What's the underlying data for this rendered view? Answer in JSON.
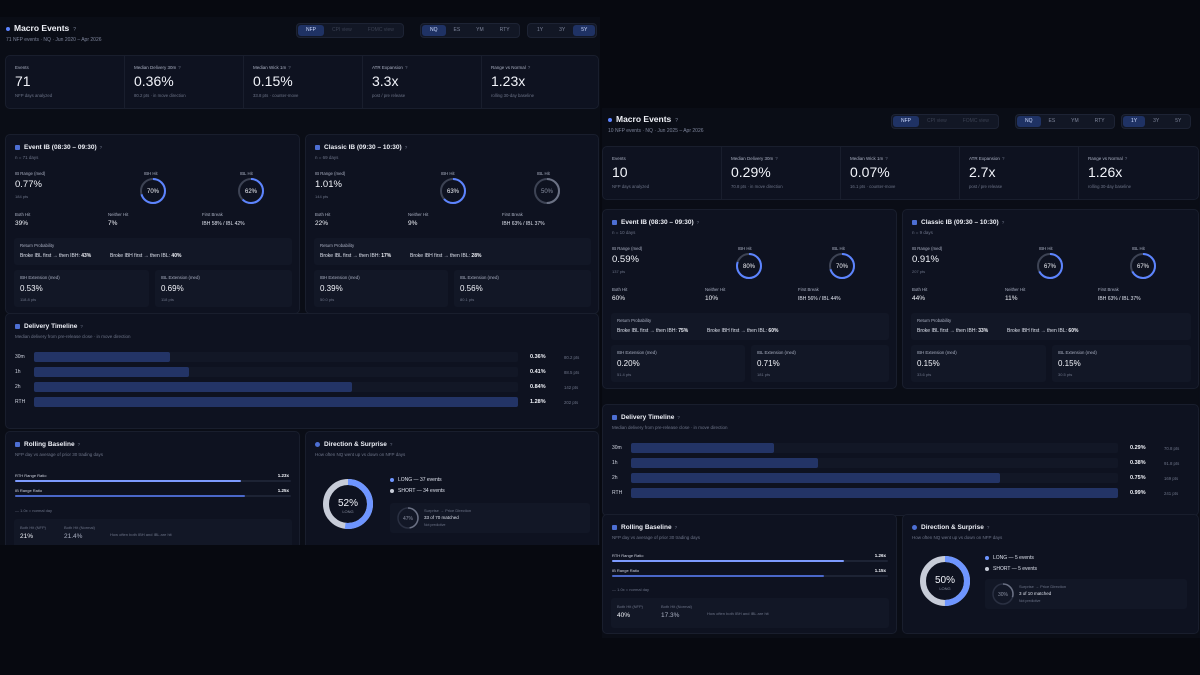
{
  "colors": {
    "accent": "#5c84ff",
    "ring_dim": "#3d4354",
    "long": "#6e95ff",
    "short": "#c7ccd8"
  },
  "dashboards": [
    {
      "header": {
        "title": "Macro Events",
        "subtitle": "71 NFP events · NQ · Jun 2020 – Apr 2026",
        "events": [
          "NFP",
          "CPI view",
          "FOMC view"
        ],
        "symbols": [
          "NQ",
          "ES",
          "YM",
          "RTY"
        ],
        "ranges": [
          "1Y",
          "3Y",
          "5Y"
        ],
        "active_event": "NFP",
        "active_symbol": "NQ",
        "active_range": "5Y"
      },
      "stats": [
        {
          "label": "Events",
          "value": "71",
          "desc": "NFP days analyzed",
          "help": ""
        },
        {
          "label": "Median Delivery 30m",
          "value": "0.36%",
          "desc": "80.2 pts · in move direction",
          "help": "?"
        },
        {
          "label": "Median Wick 1m",
          "value": "0.15%",
          "desc": "33.8 pts · counter-move",
          "help": "?"
        },
        {
          "label": "ATR Expansion",
          "value": "3.3x",
          "desc": "post / pre release",
          "help": "?"
        },
        {
          "label": "Range vs Normal",
          "value": "1.23x",
          "desc": "rolling 30-day baseline",
          "help": "?"
        }
      ],
      "event_ib": {
        "title": "Event IB (08:30 – 09:30)",
        "n": "n = 71 days",
        "range_label": "IB Range (med)",
        "range_value": "0.77%",
        "range_pts": "184 pts",
        "ibh_label": "IBH Hit",
        "ibh_pct": 70,
        "ibh_text": "70%",
        "ibl_label": "IBL Hit",
        "ibl_pct": 62,
        "ibl_text": "62%",
        "both_label": "Both Hit",
        "both_value": "39%",
        "neither_label": "Neither Hit",
        "neither_value": "7%",
        "first_label": "First Break",
        "first_value": "IBH 58% / IBL 42%",
        "rp_label": "Return Probability",
        "rp_a_text": "Broke IBL first → then IBH:",
        "rp_a_val": "43%",
        "rp_b_text": "Broke IBH first → then IBL:",
        "rp_b_val": "40%",
        "ibh_ext_label": "IBH Extension (med)",
        "ibh_ext_value": "0.53%",
        "ibh_ext_pts": "118.8 pts",
        "ibl_ext_label": "IBL Extension (med)",
        "ibl_ext_value": "0.69%",
        "ibl_ext_pts": "118 pts"
      },
      "classic_ib": {
        "title": "Classic IB (09:30 – 10:30)",
        "n": "n = 69 days",
        "range_label": "IB Range (med)",
        "range_value": "1.01%",
        "range_pts": "144 pts",
        "ibh_label": "IBH Hit",
        "ibh_pct": 63,
        "ibh_text": "63%",
        "ibl_label": "IBL Hit",
        "ibl_pct": 50,
        "ibl_text": "50%",
        "both_label": "Both Hit",
        "both_value": "22%",
        "neither_label": "Neither Hit",
        "neither_value": "9%",
        "first_label": "First Break",
        "first_value": "IBH 63% / IBL 37%",
        "rp_label": "Return Probability",
        "rp_a_text": "Broke IBL first → then IBH:",
        "rp_a_val": "17%",
        "rp_b_text": "Broke IBH first → then IBL:",
        "rp_b_val": "28%",
        "ibh_ext_label": "IBH Extension (med)",
        "ibh_ext_value": "0.39%",
        "ibh_ext_pts": "50.0 pts",
        "ibl_ext_label": "IBL Extension (med)",
        "ibl_ext_value": "0.56%",
        "ibl_ext_pts": "80.1 pts"
      },
      "timeline": {
        "title": "Delivery Timeline",
        "subtitle": "Median delivery from pre-release close · in move direction",
        "rows": [
          {
            "label": "30m",
            "pct": 0.36,
            "value": "0.36%",
            "pts": "80.2 pts"
          },
          {
            "label": "1h",
            "pct": 0.41,
            "value": "0.41%",
            "pts": "88.5 pts"
          },
          {
            "label": "2h",
            "pct": 0.84,
            "value": "0.84%",
            "pts": "142 pts"
          },
          {
            "label": "RTH",
            "pct": 1.28,
            "value": "1.28%",
            "pts": "202 pts"
          }
        ]
      },
      "baseline": {
        "title": "Rolling Baseline",
        "subtitle": "NFP day vs average of prior 30 trading days",
        "rth_label": "RTH Range Ratio",
        "rth_value": "1.23x",
        "rth_ratio": 1.23,
        "ib_label": "IB Range Ratio",
        "ib_value": "1.25x",
        "ib_ratio": 1.25,
        "note": "— 1.0x = normal day",
        "nfp_label": "Both Hit (NFP)",
        "nfp_value": "21%",
        "normal_label": "Both Hit (Normal)",
        "normal_value": "21.4%",
        "compare_text": "How often both IBH and IBL are hit"
      },
      "direction": {
        "title": "Direction & Surprise",
        "subtitle": "How often NQ went up vs down on NFP days",
        "long_pct": 52,
        "donut_value": "52%",
        "donut_label": "LONG",
        "long_text": "LONG — 37 events",
        "short_text": "SHORT — 34 events",
        "surprise_label": "Surprise → Price Direction",
        "surprise_pct": 47,
        "surprise_value": "47%",
        "surprise_detail": "33 of 70 matched",
        "surprise_note": "Not predictive"
      }
    },
    {
      "header": {
        "title": "Macro Events",
        "subtitle": "10 NFP events · NQ · Jun 2025 – Apr 2026",
        "events": [
          "NFP",
          "CPI view",
          "FOMC view"
        ],
        "symbols": [
          "NQ",
          "ES",
          "YM",
          "RTY"
        ],
        "ranges": [
          "1Y",
          "3Y",
          "5Y"
        ],
        "active_event": "NFP",
        "active_symbol": "NQ",
        "active_range": "1Y"
      },
      "stats": [
        {
          "label": "Events",
          "value": "10",
          "desc": "NFP days analyzed",
          "help": ""
        },
        {
          "label": "Median Delivery 30m",
          "value": "0.29%",
          "desc": "70.8 pts · in move direction",
          "help": "?"
        },
        {
          "label": "Median Wick 1m",
          "value": "0.07%",
          "desc": "16.1 pts · counter-move",
          "help": "?"
        },
        {
          "label": "ATR Expansion",
          "value": "2.7x",
          "desc": "post / pre release",
          "help": "?"
        },
        {
          "label": "Range vs Normal",
          "value": "1.26x",
          "desc": "rolling 30-day baseline",
          "help": "?"
        }
      ],
      "event_ib": {
        "title": "Event IB (08:30 – 09:30)",
        "n": "n = 10 days",
        "range_label": "IB Range (med)",
        "range_value": "0.59%",
        "range_pts": "137 pts",
        "ibh_label": "IBH Hit",
        "ibh_pct": 80,
        "ibh_text": "80%",
        "ibl_label": "IBL Hit",
        "ibl_pct": 70,
        "ibl_text": "70%",
        "both_label": "Both Hit",
        "both_value": "60%",
        "neither_label": "Neither Hit",
        "neither_value": "10%",
        "first_label": "First Break",
        "first_value": "IBH 56% / IBL 44%",
        "rp_label": "Return Probability",
        "rp_a_text": "Broke IBL first → then IBH:",
        "rp_a_val": "75%",
        "rp_b_text": "Broke IBH first → then IBL:",
        "rp_b_val": "60%",
        "ibh_ext_label": "IBH Extension (med)",
        "ibh_ext_value": "0.20%",
        "ibh_ext_pts": "51.4 pts",
        "ibl_ext_label": "IBL Extension (med)",
        "ibl_ext_value": "0.71%",
        "ibl_ext_pts": "181 pts"
      },
      "classic_ib": {
        "title": "Classic IB (09:30 – 10:30)",
        "n": "n = 9 days",
        "range_label": "IB Range (med)",
        "range_value": "0.91%",
        "range_pts": "207 pts",
        "ibh_label": "IBH Hit",
        "ibh_pct": 67,
        "ibh_text": "67%",
        "ibl_label": "IBL Hit",
        "ibl_pct": 67,
        "ibl_text": "67%",
        "both_label": "Both Hit",
        "both_value": "44%",
        "neither_label": "Neither Hit",
        "neither_value": "11%",
        "first_label": "First Break",
        "first_value": "IBH 63% / IBL 37%",
        "rp_label": "Return Probability",
        "rp_a_text": "Broke IBL first → then IBH:",
        "rp_a_val": "33%",
        "rp_b_text": "Broke IBH first → then IBL:",
        "rp_b_val": "60%",
        "ibh_ext_label": "IBH Extension (med)",
        "ibh_ext_value": "0.15%",
        "ibh_ext_pts": "33.6 pts",
        "ibl_ext_label": "IBL Extension (med)",
        "ibl_ext_value": "0.15%",
        "ibl_ext_pts": "30.5 pts"
      },
      "timeline": {
        "title": "Delivery Timeline",
        "subtitle": "Median delivery from pre-release close · in move direction",
        "rows": [
          {
            "label": "30m",
            "pct": 0.29,
            "value": "0.29%",
            "pts": "70.8 pts"
          },
          {
            "label": "1h",
            "pct": 0.38,
            "value": "0.38%",
            "pts": "91.8 pts"
          },
          {
            "label": "2h",
            "pct": 0.75,
            "value": "0.75%",
            "pts": "169 pts"
          },
          {
            "label": "RTH",
            "pct": 0.99,
            "value": "0.99%",
            "pts": "241 pts"
          }
        ]
      },
      "baseline": {
        "title": "Rolling Baseline",
        "subtitle": "NFP day vs average of prior 30 trading days",
        "rth_label": "RTH Range Ratio",
        "rth_value": "1.26x",
        "rth_ratio": 1.26,
        "ib_label": "IB Range Ratio",
        "ib_value": "1.15x",
        "ib_ratio": 1.15,
        "note": "— 1.0x = normal day",
        "nfp_label": "Both Hit (NFP)",
        "nfp_value": "40%",
        "normal_label": "Both Hit (Normal)",
        "normal_value": "17.3%",
        "compare_text": "How often both IBH and IBL are hit"
      },
      "direction": {
        "title": "Direction & Surprise",
        "subtitle": "How often NQ went up vs down on NFP days",
        "long_pct": 50,
        "donut_value": "50%",
        "donut_label": "LONG",
        "long_text": "LONG — 5 events",
        "short_text": "SHORT — 5 events",
        "surprise_label": "Surprise → Price Direction",
        "surprise_pct": 30,
        "surprise_value": "30%",
        "surprise_detail": "3 of 10 matched",
        "surprise_note": "Not predictive"
      }
    }
  ]
}
